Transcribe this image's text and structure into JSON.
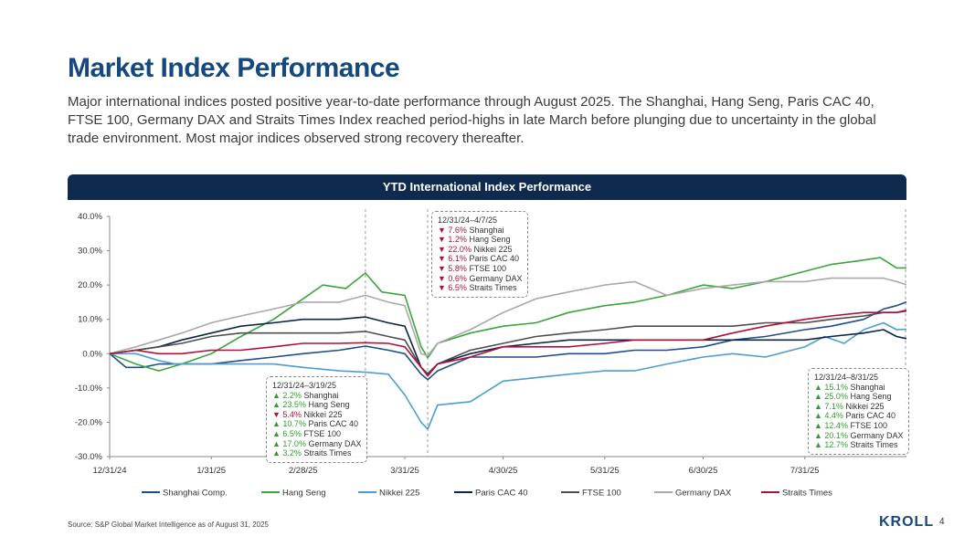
{
  "title": "Market Index Performance",
  "subtitle": "Major international indices posted positive year-to-date performance through August 2025. The Shanghai, Hang Seng, Paris CAC 40, FTSE 100, Germany DAX and Straits Times Index reached period-highs in late March before plunging due to uncertainty in the global trade environment. Most major indices observed strong recovery thereafter.",
  "chart_header": "YTD International Index Performance",
  "source": "Source: S&P Global Market Intelligence as of August 31, 2025",
  "logo": "KROLL",
  "page_number": "4",
  "colors": {
    "Shanghai Comp.": "#1f4e8c",
    "Hang Seng": "#3aa63a",
    "Nikkei 225": "#4a9fd0",
    "Paris CAC 40": "#0b2447",
    "FTSE 100": "#4d4d4d",
    "Germany DAX": "#a9a9a9",
    "Straits Times": "#b0103a"
  },
  "callouts": [
    {
      "title": "12/31/24–3/19/25",
      "items": [
        {
          "dir": "up",
          "value": "2.2%",
          "label": "Shanghai"
        },
        {
          "dir": "up",
          "value": "23.5%",
          "label": "Hang Seng"
        },
        {
          "dir": "down",
          "value": "5.4%",
          "label": "Nikkei 225"
        },
        {
          "dir": "up",
          "value": "10.7%",
          "label": "Paris CAC 40"
        },
        {
          "dir": "up",
          "value": "6.5%",
          "label": "FTSE 100"
        },
        {
          "dir": "up",
          "value": "17.0%",
          "label": "Germany DAX"
        },
        {
          "dir": "up",
          "value": "3.2%",
          "label": "Straits Times"
        }
      ]
    },
    {
      "title": "12/31/24–4/7/25",
      "items": [
        {
          "dir": "down",
          "value": "7.6%",
          "label": "Shanghai"
        },
        {
          "dir": "down",
          "value": "1.2%",
          "label": "Hang Seng"
        },
        {
          "dir": "down",
          "value": "22.0%",
          "label": "Nikkei 225"
        },
        {
          "dir": "down",
          "value": "6.1%",
          "label": "Paris CAC 40"
        },
        {
          "dir": "down",
          "value": "5.8%",
          "label": "FTSE 100"
        },
        {
          "dir": "down",
          "value": "0.6%",
          "label": "Germany DAX"
        },
        {
          "dir": "down",
          "value": "6.5%",
          "label": "Straits Times"
        }
      ]
    },
    {
      "title": "12/31/24–8/31/25",
      "items": [
        {
          "dir": "up",
          "value": "15.1%",
          "label": "Shanghai"
        },
        {
          "dir": "up",
          "value": "25.0%",
          "label": "Hang Seng"
        },
        {
          "dir": "up",
          "value": "7.1%",
          "label": "Nikkei 225"
        },
        {
          "dir": "up",
          "value": "4.4%",
          "label": "Paris CAC 40"
        },
        {
          "dir": "up",
          "value": "12.4%",
          "label": "FTSE 100"
        },
        {
          "dir": "up",
          "value": "20.1%",
          "label": "Germany DAX"
        },
        {
          "dir": "up",
          "value": "12.7%",
          "label": "Straits Times"
        }
      ]
    }
  ],
  "chart_data": {
    "type": "line",
    "title": "YTD International Index Performance",
    "xlabel": "",
    "ylabel": "",
    "x_ticks": [
      "12/31/24",
      "1/31/25",
      "2/28/25",
      "3/31/25",
      "4/30/25",
      "5/31/25",
      "6/30/25",
      "7/31/25"
    ],
    "x_tick_days": [
      0,
      31,
      59,
      90,
      120,
      151,
      181,
      212
    ],
    "x_range_days": [
      0,
      243
    ],
    "y_ticks": [
      "40.0%",
      "30.0%",
      "20.0%",
      "10.0%",
      "0.0%",
      "-10.0%",
      "-20.0%",
      "-30.0%"
    ],
    "ylim": [
      -30,
      40
    ],
    "marker_days": [
      78,
      97,
      243
    ],
    "legend_position": "bottom",
    "series": [
      {
        "name": "Shanghai Comp.",
        "points": [
          [
            0,
            0
          ],
          [
            5,
            -4
          ],
          [
            10,
            -4
          ],
          [
            15,
            -3
          ],
          [
            20,
            -3
          ],
          [
            31,
            -3
          ],
          [
            40,
            -2
          ],
          [
            50,
            -1
          ],
          [
            59,
            0
          ],
          [
            70,
            1
          ],
          [
            78,
            2.2
          ],
          [
            85,
            1
          ],
          [
            90,
            0
          ],
          [
            95,
            -6
          ],
          [
            97,
            -7.6
          ],
          [
            100,
            -5
          ],
          [
            110,
            -1
          ],
          [
            120,
            -1
          ],
          [
            130,
            -1
          ],
          [
            140,
            0
          ],
          [
            151,
            0
          ],
          [
            160,
            1
          ],
          [
            170,
            1
          ],
          [
            181,
            2
          ],
          [
            190,
            4
          ],
          [
            200,
            5
          ],
          [
            212,
            7
          ],
          [
            220,
            8
          ],
          [
            230,
            10
          ],
          [
            236,
            13
          ],
          [
            240,
            14
          ],
          [
            243,
            15.1
          ]
        ]
      },
      {
        "name": "Hang Seng",
        "points": [
          [
            0,
            0
          ],
          [
            8,
            -3
          ],
          [
            15,
            -5
          ],
          [
            22,
            -3
          ],
          [
            31,
            0
          ],
          [
            40,
            5
          ],
          [
            50,
            10
          ],
          [
            59,
            16
          ],
          [
            65,
            20
          ],
          [
            72,
            19
          ],
          [
            78,
            23.5
          ],
          [
            83,
            18
          ],
          [
            90,
            17
          ],
          [
            95,
            2
          ],
          [
            97,
            -1.2
          ],
          [
            100,
            3
          ],
          [
            110,
            6
          ],
          [
            120,
            8
          ],
          [
            130,
            9
          ],
          [
            140,
            12
          ],
          [
            151,
            14
          ],
          [
            160,
            15
          ],
          [
            170,
            17
          ],
          [
            181,
            20
          ],
          [
            190,
            19
          ],
          [
            200,
            21
          ],
          [
            212,
            24
          ],
          [
            220,
            26
          ],
          [
            228,
            27
          ],
          [
            235,
            28
          ],
          [
            240,
            25
          ],
          [
            243,
            25
          ]
        ]
      },
      {
        "name": "Nikkei 225",
        "points": [
          [
            0,
            0
          ],
          [
            8,
            0
          ],
          [
            15,
            -2
          ],
          [
            20,
            -3
          ],
          [
            31,
            -3
          ],
          [
            40,
            -3
          ],
          [
            50,
            -3
          ],
          [
            59,
            -4
          ],
          [
            70,
            -5
          ],
          [
            78,
            -5.4
          ],
          [
            85,
            -6
          ],
          [
            90,
            -12
          ],
          [
            95,
            -20
          ],
          [
            97,
            -22
          ],
          [
            100,
            -15
          ],
          [
            110,
            -14
          ],
          [
            120,
            -8
          ],
          [
            130,
            -7
          ],
          [
            140,
            -6
          ],
          [
            151,
            -5
          ],
          [
            160,
            -5
          ],
          [
            170,
            -3
          ],
          [
            181,
            -1
          ],
          [
            190,
            0
          ],
          [
            200,
            -1
          ],
          [
            212,
            2
          ],
          [
            218,
            5
          ],
          [
            224,
            3
          ],
          [
            230,
            7
          ],
          [
            236,
            9
          ],
          [
            240,
            7
          ],
          [
            243,
            7.1
          ]
        ]
      },
      {
        "name": "Paris CAC 40",
        "points": [
          [
            0,
            0
          ],
          [
            8,
            1
          ],
          [
            15,
            2
          ],
          [
            22,
            4
          ],
          [
            31,
            6
          ],
          [
            40,
            8
          ],
          [
            50,
            9
          ],
          [
            59,
            10
          ],
          [
            70,
            10
          ],
          [
            78,
            10.7
          ],
          [
            85,
            9
          ],
          [
            90,
            8
          ],
          [
            95,
            -4
          ],
          [
            97,
            -6.1
          ],
          [
            100,
            -3
          ],
          [
            110,
            0
          ],
          [
            120,
            2
          ],
          [
            130,
            3
          ],
          [
            140,
            4
          ],
          [
            151,
            4
          ],
          [
            160,
            4
          ],
          [
            170,
            4
          ],
          [
            181,
            4
          ],
          [
            190,
            4
          ],
          [
            200,
            4
          ],
          [
            212,
            4
          ],
          [
            220,
            5
          ],
          [
            230,
            6
          ],
          [
            236,
            7
          ],
          [
            240,
            5
          ],
          [
            243,
            4.4
          ]
        ]
      },
      {
        "name": "FTSE 100",
        "points": [
          [
            0,
            0
          ],
          [
            8,
            1
          ],
          [
            15,
            2
          ],
          [
            22,
            3
          ],
          [
            31,
            5
          ],
          [
            40,
            6
          ],
          [
            50,
            6
          ],
          [
            59,
            6
          ],
          [
            70,
            6
          ],
          [
            78,
            6.5
          ],
          [
            85,
            5
          ],
          [
            90,
            4
          ],
          [
            95,
            -4
          ],
          [
            97,
            -5.8
          ],
          [
            100,
            -3
          ],
          [
            110,
            1
          ],
          [
            120,
            3
          ],
          [
            130,
            5
          ],
          [
            140,
            6
          ],
          [
            151,
            7
          ],
          [
            160,
            8
          ],
          [
            170,
            8
          ],
          [
            181,
            8
          ],
          [
            190,
            8
          ],
          [
            200,
            9
          ],
          [
            212,
            9
          ],
          [
            220,
            10
          ],
          [
            230,
            11
          ],
          [
            236,
            12
          ],
          [
            240,
            12
          ],
          [
            243,
            12.4
          ]
        ]
      },
      {
        "name": "Germany DAX",
        "points": [
          [
            0,
            0
          ],
          [
            8,
            2
          ],
          [
            15,
            4
          ],
          [
            22,
            6
          ],
          [
            31,
            9
          ],
          [
            40,
            11
          ],
          [
            50,
            13
          ],
          [
            59,
            15
          ],
          [
            70,
            15
          ],
          [
            78,
            17
          ],
          [
            85,
            15
          ],
          [
            90,
            14
          ],
          [
            95,
            0
          ],
          [
            97,
            -0.6
          ],
          [
            100,
            3
          ],
          [
            110,
            7
          ],
          [
            120,
            12
          ],
          [
            130,
            16
          ],
          [
            140,
            18
          ],
          [
            151,
            20
          ],
          [
            160,
            21
          ],
          [
            170,
            17
          ],
          [
            181,
            19
          ],
          [
            190,
            20
          ],
          [
            200,
            21
          ],
          [
            212,
            21
          ],
          [
            220,
            22
          ],
          [
            228,
            22
          ],
          [
            236,
            22
          ],
          [
            240,
            21
          ],
          [
            243,
            20.1
          ]
        ]
      },
      {
        "name": "Straits Times",
        "points": [
          [
            0,
            0
          ],
          [
            8,
            1
          ],
          [
            15,
            0
          ],
          [
            22,
            0
          ],
          [
            31,
            1
          ],
          [
            40,
            1
          ],
          [
            50,
            2
          ],
          [
            59,
            3
          ],
          [
            70,
            3
          ],
          [
            78,
            3.2
          ],
          [
            85,
            3
          ],
          [
            90,
            2
          ],
          [
            95,
            -4
          ],
          [
            97,
            -6.5
          ],
          [
            100,
            -3
          ],
          [
            110,
            -1
          ],
          [
            120,
            2
          ],
          [
            130,
            2
          ],
          [
            140,
            2
          ],
          [
            151,
            3
          ],
          [
            160,
            4
          ],
          [
            170,
            4
          ],
          [
            181,
            4
          ],
          [
            190,
            6
          ],
          [
            200,
            8
          ],
          [
            212,
            10
          ],
          [
            220,
            11
          ],
          [
            230,
            12
          ],
          [
            236,
            12
          ],
          [
            240,
            12
          ],
          [
            243,
            12.7
          ]
        ]
      }
    ]
  }
}
